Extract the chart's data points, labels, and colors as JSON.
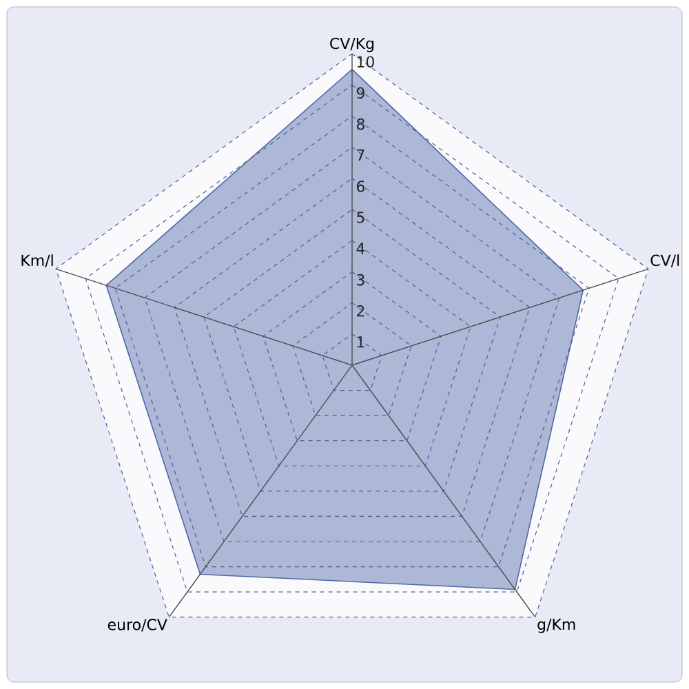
{
  "chart_data": {
    "type": "radar",
    "categories": [
      "CV/Kg",
      "CV/l",
      "g/Km",
      "euro/CV",
      "Km/l"
    ],
    "series": [
      {
        "color": "#4f68a8",
        "values": [
          9.5,
          7.8,
          8.9,
          8.3,
          8.3
        ]
      }
    ],
    "ylim": [
      0,
      10
    ],
    "yticks": [
      1,
      2,
      3,
      4,
      5,
      6,
      7,
      8,
      9,
      10
    ],
    "grid": true
  }
}
